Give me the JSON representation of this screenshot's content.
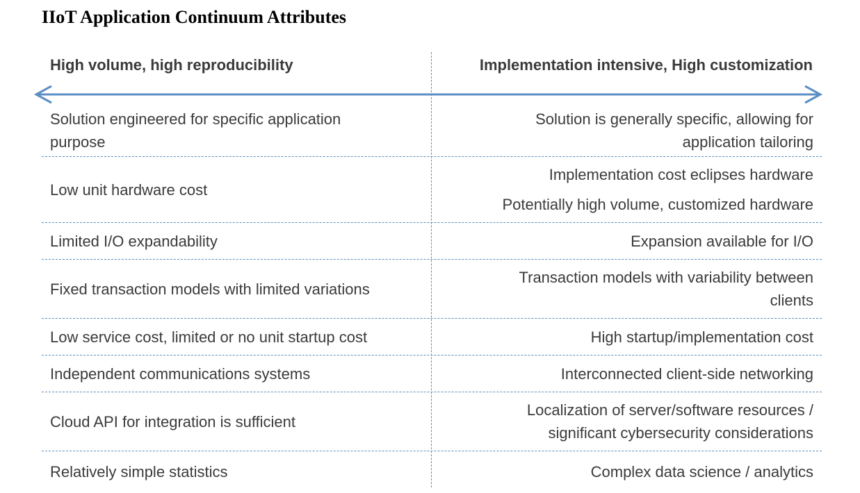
{
  "title": "IIoT Application Continuum Attributes",
  "header": {
    "left": "High volume, high reproducibility",
    "right": "Implementation intensive, High customization"
  },
  "colors": {
    "accent": "#5b8ec4",
    "divider": "#5a8fbd",
    "text": "#3a3a3a"
  },
  "rows": [
    {
      "left": [
        "Solution engineered for specific application",
        "purpose"
      ],
      "right": [
        "Solution is generally specific, allowing for",
        "application tailoring"
      ]
    },
    {
      "left": [
        "Low unit hardware cost"
      ],
      "right": [
        "Implementation cost eclipses hardware",
        "Potentially high volume, customized hardware"
      ]
    },
    {
      "left": [
        "Limited I/O expandability"
      ],
      "right": [
        "Expansion available for I/O"
      ]
    },
    {
      "left": [
        "Fixed transaction models with limited variations"
      ],
      "right": [
        "Transaction models with variability between",
        "clients"
      ]
    },
    {
      "left": [
        "Low service cost, limited or no unit startup cost"
      ],
      "right": [
        "High startup/implementation cost"
      ]
    },
    {
      "left": [
        "Independent communications systems"
      ],
      "right": [
        "Interconnected client-side networking"
      ]
    },
    {
      "left": [
        "Cloud API for integration is sufficient"
      ],
      "right": [
        "Localization of server/software resources /",
        "significant cybersecurity considerations"
      ]
    },
    {
      "left": [
        "Relatively simple statistics"
      ],
      "right": [
        "Complex data science / analytics"
      ]
    }
  ]
}
